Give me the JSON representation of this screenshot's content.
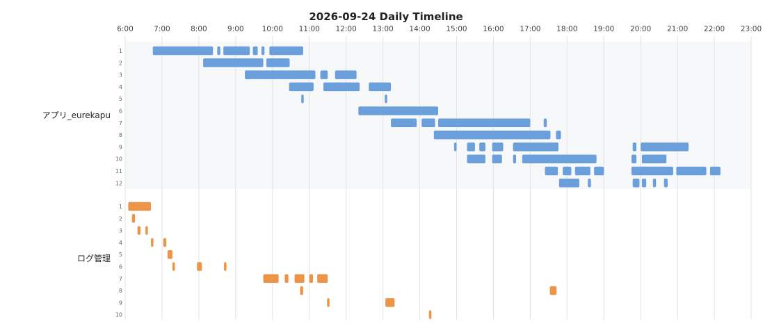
{
  "chart_data": {
    "type": "timeline",
    "title": "2026-09-24 Daily Timeline",
    "x_ticks": [
      "6:00",
      "7:00",
      "8:00",
      "9:00",
      "10:00",
      "11:00",
      "12:00",
      "13:00",
      "14:00",
      "15:00",
      "16:00",
      "17:00",
      "18:00",
      "19:00",
      "20:00",
      "21:00",
      "22:00",
      "23:00"
    ],
    "xlim": [
      "6:00",
      "23:00"
    ],
    "grid": true,
    "groups": [
      {
        "name": "アプリ_eurekapu",
        "color": "#6a9fdb",
        "background": "#f7f8fa",
        "rows": [
          {
            "label": "1",
            "segments": [
              [
                "6:45",
                "8:23"
              ],
              [
                "8:30",
                "8:35"
              ],
              [
                "8:40",
                "9:23"
              ],
              [
                "9:28",
                "9:36"
              ],
              [
                "9:42",
                "9:47"
              ],
              [
                "9:55",
                "10:50"
              ]
            ]
          },
          {
            "label": "2",
            "segments": [
              [
                "8:07",
                "9:45"
              ],
              [
                "9:50",
                "10:28"
              ]
            ]
          },
          {
            "label": "3",
            "segments": [
              [
                "9:15",
                "11:10"
              ],
              [
                "11:18",
                "11:30"
              ],
              [
                "11:42",
                "12:17"
              ]
            ]
          },
          {
            "label": "4",
            "segments": [
              [
                "10:27",
                "11:07"
              ],
              [
                "11:23",
                "12:22"
              ],
              [
                "12:37",
                "13:13"
              ]
            ]
          },
          {
            "label": "5",
            "segments": [
              [
                "10:47",
                "10:50"
              ],
              [
                "13:03",
                "13:06"
              ]
            ]
          },
          {
            "label": "6",
            "segments": [
              [
                "12:20",
                "14:30"
              ]
            ]
          },
          {
            "label": "7",
            "segments": [
              [
                "13:13",
                "13:55"
              ],
              [
                "14:03",
                "14:25"
              ],
              [
                "14:30",
                "17:00"
              ],
              [
                "17:22",
                "17:27"
              ]
            ]
          },
          {
            "label": "8",
            "segments": [
              [
                "14:23",
                "17:33"
              ],
              [
                "17:42",
                "17:50"
              ]
            ]
          },
          {
            "label": "9",
            "segments": [
              [
                "14:56",
                "14:59"
              ],
              [
                "15:17",
                "15:30"
              ],
              [
                "15:37",
                "15:47"
              ],
              [
                "15:58",
                "16:16"
              ],
              [
                "16:32",
                "17:46"
              ],
              [
                "19:47",
                "19:53"
              ],
              [
                "20:00",
                "21:18"
              ]
            ]
          },
          {
            "label": "10",
            "segments": [
              [
                "15:17",
                "15:47"
              ],
              [
                "15:58",
                "16:14"
              ],
              [
                "16:32",
                "16:37"
              ],
              [
                "16:47",
                "18:48"
              ],
              [
                "19:45",
                "19:53"
              ],
              [
                "20:02",
                "20:42"
              ]
            ]
          },
          {
            "label": "11",
            "segments": [
              [
                "17:24",
                "17:45"
              ],
              [
                "17:53",
                "18:07"
              ],
              [
                "18:13",
                "18:38"
              ],
              [
                "18:44",
                "19:00"
              ],
              [
                "19:45",
                "20:53"
              ],
              [
                "20:58",
                "21:47"
              ],
              [
                "21:53",
                "22:10"
              ]
            ]
          },
          {
            "label": "12",
            "segments": [
              [
                "17:47",
                "18:20"
              ],
              [
                "18:34",
                "18:39"
              ],
              [
                "19:47",
                "19:58"
              ],
              [
                "20:02",
                "20:09"
              ],
              [
                "20:20",
                "20:25"
              ],
              [
                "20:38",
                "20:44"
              ]
            ]
          }
        ]
      },
      {
        "name": "ログ管理",
        "color": "#ec9447",
        "background": "#ffffff",
        "rows": [
          {
            "label": "1",
            "segments": [
              [
                "6:05",
                "6:42"
              ]
            ]
          },
          {
            "label": "2",
            "segments": [
              [
                "6:11",
                "6:16"
              ]
            ]
          },
          {
            "label": "3",
            "segments": [
              [
                "6:20",
                "6:25"
              ],
              [
                "6:33",
                "6:37"
              ]
            ]
          },
          {
            "label": "4",
            "segments": [
              [
                "6:42",
                "6:46"
              ],
              [
                "7:02",
                "7:07"
              ]
            ]
          },
          {
            "label": "5",
            "segments": [
              [
                "7:09",
                "7:17"
              ]
            ]
          },
          {
            "label": "6",
            "segments": [
              [
                "7:17",
                "7:21"
              ],
              [
                "7:57",
                "8:05"
              ],
              [
                "8:41",
                "8:45"
              ]
            ]
          },
          {
            "label": "7",
            "segments": [
              [
                "9:45",
                "10:10"
              ],
              [
                "10:20",
                "10:26"
              ],
              [
                "10:36",
                "10:52"
              ],
              [
                "11:00",
                "11:06"
              ],
              [
                "11:13",
                "11:30"
              ]
            ]
          },
          {
            "label": "8",
            "segments": [
              [
                "10:45",
                "10:50"
              ],
              [
                "17:32",
                "17:43"
              ]
            ]
          },
          {
            "label": "9",
            "segments": [
              [
                "11:29",
                "11:33"
              ],
              [
                "13:04",
                "13:19"
              ]
            ]
          },
          {
            "label": "10",
            "segments": [
              [
                "14:15",
                "14:19"
              ]
            ]
          }
        ]
      }
    ]
  }
}
